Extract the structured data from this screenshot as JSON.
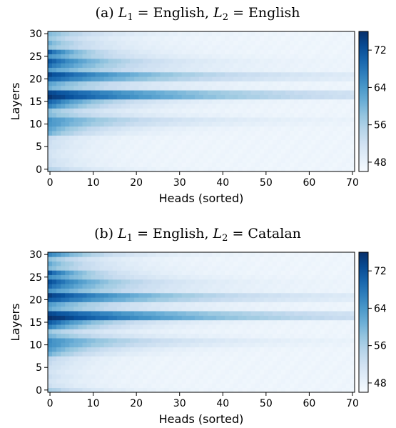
{
  "chart_data": [
    {
      "type": "heatmap",
      "panel": "a",
      "title_prefix": "(a) ",
      "title_l1": "L",
      "title_l1_sub": "1",
      "title_mid": " = English, ",
      "title_l2": "L",
      "title_l2_sub": "2",
      "title_end": " = English",
      "xlabel": "Heads (sorted)",
      "ylabel": "Layers",
      "x_ticks": [
        0,
        10,
        20,
        30,
        40,
        50,
        60,
        70
      ],
      "y_ticks": [
        0,
        5,
        10,
        15,
        20,
        25,
        30
      ],
      "xlim": [
        0,
        71
      ],
      "ylim": [
        0,
        31
      ],
      "colorbar_ticks": [
        48,
        56,
        64,
        72
      ],
      "colorbar_range": [
        46,
        76
      ],
      "colormap": "Blues",
      "rows": [
        {
          "layer": 0,
          "peak": 55,
          "decay": 10
        },
        {
          "layer": 1,
          "peak": 52,
          "decay": 8
        },
        {
          "layer": 2,
          "peak": 52,
          "decay": 8
        },
        {
          "layer": 3,
          "peak": 51,
          "decay": 8
        },
        {
          "layer": 4,
          "peak": 51,
          "decay": 8
        },
        {
          "layer": 5,
          "peak": 52,
          "decay": 8
        },
        {
          "layer": 6,
          "peak": 52,
          "decay": 8
        },
        {
          "layer": 7,
          "peak": 53,
          "decay": 8
        },
        {
          "layer": 8,
          "peak": 60,
          "decay": 10
        },
        {
          "layer": 9,
          "peak": 62,
          "decay": 12
        },
        {
          "layer": 10,
          "peak": 64,
          "decay": 18
        },
        {
          "layer": 11,
          "peak": 64,
          "decay": 22
        },
        {
          "layer": 12,
          "peak": 59,
          "decay": 15
        },
        {
          "layer": 13,
          "peak": 58,
          "decay": 12
        },
        {
          "layer": 14,
          "peak": 66,
          "decay": 12
        },
        {
          "layer": 15,
          "peak": 70,
          "decay": 14
        },
        {
          "layer": 16,
          "peak": 75,
          "decay": 40
        },
        {
          "layer": 17,
          "peak": 73,
          "decay": 40
        },
        {
          "layer": 18,
          "peak": 60,
          "decay": 18
        },
        {
          "layer": 19,
          "peak": 62,
          "decay": 16
        },
        {
          "layer": 20,
          "peak": 70,
          "decay": 28
        },
        {
          "layer": 21,
          "peak": 73,
          "decay": 30
        },
        {
          "layer": 22,
          "peak": 63,
          "decay": 18
        },
        {
          "layer": 23,
          "peak": 68,
          "decay": 16
        },
        {
          "layer": 24,
          "peak": 71,
          "decay": 16
        },
        {
          "layer": 25,
          "peak": 64,
          "decay": 14
        },
        {
          "layer": 26,
          "peak": 70,
          "decay": 10
        },
        {
          "layer": 27,
          "peak": 58,
          "decay": 12
        },
        {
          "layer": 28,
          "peak": 60,
          "decay": 10
        },
        {
          "layer": 29,
          "peak": 57,
          "decay": 10
        },
        {
          "layer": 30,
          "peak": 59,
          "decay": 12
        }
      ]
    },
    {
      "type": "heatmap",
      "panel": "b",
      "title_prefix": "(b) ",
      "title_l1": "L",
      "title_l1_sub": "1",
      "title_mid": " = English, ",
      "title_l2": "L",
      "title_l2_sub": "2",
      "title_end": " = Catalan",
      "xlabel": "Heads (sorted)",
      "ylabel": "Layers",
      "x_ticks": [
        0,
        10,
        20,
        30,
        40,
        50,
        60,
        70
      ],
      "y_ticks": [
        0,
        5,
        10,
        15,
        20,
        25,
        30
      ],
      "xlim": [
        0,
        71
      ],
      "ylim": [
        0,
        31
      ],
      "colorbar_ticks": [
        48,
        56,
        64,
        72
      ],
      "colorbar_range": [
        46,
        76
      ],
      "colormap": "Blues",
      "rows": [
        {
          "layer": 0,
          "peak": 56,
          "decay": 10
        },
        {
          "layer": 1,
          "peak": 52,
          "decay": 8
        },
        {
          "layer": 2,
          "peak": 51,
          "decay": 8
        },
        {
          "layer": 3,
          "peak": 52,
          "decay": 8
        },
        {
          "layer": 4,
          "peak": 51,
          "decay": 8
        },
        {
          "layer": 5,
          "peak": 52,
          "decay": 8
        },
        {
          "layer": 6,
          "peak": 53,
          "decay": 8
        },
        {
          "layer": 7,
          "peak": 54,
          "decay": 8
        },
        {
          "layer": 8,
          "peak": 60,
          "decay": 10
        },
        {
          "layer": 9,
          "peak": 63,
          "decay": 12
        },
        {
          "layer": 10,
          "peak": 65,
          "decay": 18
        },
        {
          "layer": 11,
          "peak": 65,
          "decay": 22
        },
        {
          "layer": 12,
          "peak": 60,
          "decay": 15
        },
        {
          "layer": 13,
          "peak": 57,
          "decay": 12
        },
        {
          "layer": 14,
          "peak": 66,
          "decay": 12
        },
        {
          "layer": 15,
          "peak": 71,
          "decay": 14
        },
        {
          "layer": 16,
          "peak": 76,
          "decay": 42
        },
        {
          "layer": 17,
          "peak": 73,
          "decay": 40
        },
        {
          "layer": 18,
          "peak": 61,
          "decay": 18
        },
        {
          "layer": 19,
          "peak": 63,
          "decay": 16
        },
        {
          "layer": 20,
          "peak": 71,
          "decay": 28
        },
        {
          "layer": 21,
          "peak": 74,
          "decay": 30
        },
        {
          "layer": 22,
          "peak": 64,
          "decay": 18
        },
        {
          "layer": 23,
          "peak": 69,
          "decay": 16
        },
        {
          "layer": 24,
          "peak": 72,
          "decay": 16
        },
        {
          "layer": 25,
          "peak": 65,
          "decay": 14
        },
        {
          "layer": 26,
          "peak": 71,
          "decay": 10
        },
        {
          "layer": 27,
          "peak": 59,
          "decay": 12
        },
        {
          "layer": 28,
          "peak": 61,
          "decay": 10
        },
        {
          "layer": 29,
          "peak": 58,
          "decay": 10
        },
        {
          "layer": 30,
          "peak": 66,
          "decay": 12
        }
      ]
    }
  ]
}
